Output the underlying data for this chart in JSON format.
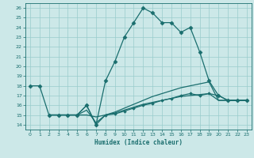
{
  "xlabel": "Humidex (Indice chaleur)",
  "bg_color": "#cce8e8",
  "grid_color": "#99cccc",
  "line_color": "#1a6e6e",
  "xlim": [
    -0.5,
    23.5
  ],
  "ylim": [
    13.5,
    26.5
  ],
  "xticks": [
    0,
    1,
    2,
    3,
    4,
    5,
    6,
    7,
    8,
    9,
    10,
    11,
    12,
    13,
    14,
    15,
    16,
    17,
    18,
    19,
    20,
    21,
    22,
    23
  ],
  "yticks": [
    14,
    15,
    16,
    17,
    18,
    19,
    20,
    21,
    22,
    23,
    24,
    25,
    26
  ],
  "lines": [
    {
      "x": [
        0,
        1,
        2,
        3,
        4,
        5,
        6,
        7,
        8,
        9,
        10,
        11,
        12,
        13,
        14,
        15,
        16,
        17,
        18,
        19,
        20,
        21,
        22,
        23
      ],
      "y": [
        18,
        18,
        15,
        15,
        15,
        15,
        16,
        14,
        18.5,
        20.5,
        23,
        24.5,
        26,
        25.5,
        24.5,
        24.5,
        23.5,
        24,
        21.5,
        18.5,
        17,
        16.5,
        16.5,
        16.5
      ],
      "marker": "D",
      "markersize": 2.5,
      "linewidth": 0.9
    },
    {
      "x": [
        2,
        3,
        4,
        5,
        6,
        7,
        8,
        9,
        10,
        11,
        12,
        13,
        14,
        15,
        16,
        17,
        18,
        19,
        20,
        21,
        22,
        23
      ],
      "y": [
        15,
        15,
        15,
        15,
        15,
        14.8,
        15,
        15.3,
        15.7,
        16.1,
        16.5,
        16.9,
        17.2,
        17.5,
        17.8,
        18.0,
        18.2,
        18.4,
        16.5,
        16.5,
        16.5,
        16.5
      ],
      "marker": null,
      "markersize": 0,
      "linewidth": 0.9
    },
    {
      "x": [
        2,
        3,
        4,
        5,
        6,
        7,
        8,
        9,
        10,
        11,
        12,
        13,
        14,
        15,
        16,
        17,
        18,
        19,
        20,
        21,
        22,
        23
      ],
      "y": [
        15,
        15,
        15,
        15,
        15.5,
        14.2,
        15,
        15.2,
        15.5,
        15.8,
        16.1,
        16.3,
        16.5,
        16.7,
        16.9,
        17.0,
        17.1,
        17.2,
        16.5,
        16.5,
        16.5,
        16.5
      ],
      "marker": null,
      "markersize": 0,
      "linewidth": 0.9
    },
    {
      "x": [
        2,
        3,
        4,
        5,
        6,
        7,
        8,
        9,
        10,
        11,
        12,
        13,
        14,
        15,
        16,
        17,
        18,
        19,
        20,
        21,
        22,
        23
      ],
      "y": [
        15,
        15,
        15,
        15,
        16,
        14,
        15,
        15.1,
        15.4,
        15.7,
        16.0,
        16.2,
        16.5,
        16.7,
        17.0,
        17.2,
        17.0,
        17.2,
        17.0,
        16.5,
        16.5,
        16.5
      ],
      "marker": "D",
      "markersize": 1.8,
      "linewidth": 0.9
    }
  ]
}
